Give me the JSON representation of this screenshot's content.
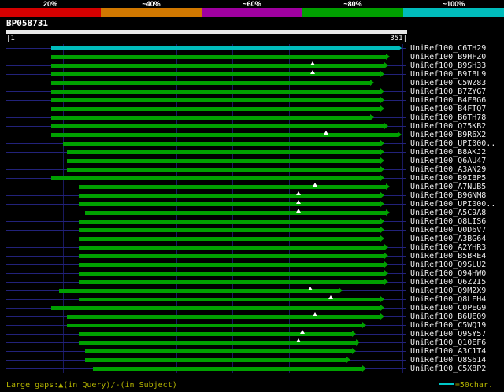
{
  "scale_bar": {
    "segments": [
      {
        "label": "20%",
        "color": "#d40000"
      },
      {
        "label": "~40%",
        "color": "#d07800"
      },
      {
        "label": "~60%",
        "color": "#a000a0"
      },
      {
        "label": "~80%",
        "color": "#00a000"
      },
      {
        "label": "~100%",
        "color": "#00bcbc"
      }
    ]
  },
  "query": {
    "name": "BP058731",
    "start_label": "|1",
    "end_label": "351|"
  },
  "chart_data": {
    "type": "bar",
    "orientation": "horizontal",
    "title": "BP058731",
    "x_range": [
      1,
      351
    ],
    "x_unit": "characters",
    "grid_interval": 50,
    "legend_position": "top",
    "colors": {
      "default": "#00a000",
      "high": "#00bcbc",
      "query_line": "#22227a"
    },
    "hits": [
      {
        "label": "UniRef100_C6TH29",
        "start": 39,
        "end": 346,
        "tier": "high"
      },
      {
        "label": "UniRef100_B9HFZ0",
        "start": 39,
        "end": 336
      },
      {
        "label": "UniRef100_B9SH33",
        "start": 39,
        "end": 334,
        "gaps": [
          271
        ]
      },
      {
        "label": "UniRef100_B9IBL9",
        "start": 39,
        "end": 331,
        "gaps": [
          271
        ]
      },
      {
        "label": "UniRef100_C5WZ83",
        "start": 39,
        "end": 322
      },
      {
        "label": "UniRef100_B7ZYG7",
        "start": 39,
        "end": 331
      },
      {
        "label": "UniRef100_B4F8G6",
        "start": 39,
        "end": 331
      },
      {
        "label": "UniRef100_B4FTQ7",
        "start": 39,
        "end": 331
      },
      {
        "label": "UniRef100_B6TH78",
        "start": 39,
        "end": 322
      },
      {
        "label": "UniRef100_Q75KB2",
        "start": 39,
        "end": 334
      },
      {
        "label": "UniRef100_B9R6X2",
        "start": 39,
        "end": 346,
        "gaps": [
          283
        ]
      },
      {
        "label": "UniRef100_UPI000..",
        "start": 50,
        "end": 331
      },
      {
        "label": "UniRef100_B8AKJ2",
        "start": 53,
        "end": 331
      },
      {
        "label": "UniRef100_Q6AU47",
        "start": 53,
        "end": 331
      },
      {
        "label": "UniRef100_A3AN29",
        "start": 53,
        "end": 331
      },
      {
        "label": "UniRef100_B9IBP5",
        "start": 39,
        "end": 331
      },
      {
        "label": "UniRef100_A7NUB5",
        "start": 64,
        "end": 336,
        "gaps": [
          273
        ]
      },
      {
        "label": "UniRef100_B9GNM8",
        "start": 64,
        "end": 331,
        "gaps": [
          258
        ]
      },
      {
        "label": "UniRef100_UPI000..",
        "start": 64,
        "end": 331,
        "gaps": [
          258
        ]
      },
      {
        "label": "UniRef100_A5C9A8",
        "start": 69,
        "end": 336,
        "gaps": [
          258
        ]
      },
      {
        "label": "UniRef100_Q8LIS6",
        "start": 64,
        "end": 331
      },
      {
        "label": "UniRef100_Q0D6V7",
        "start": 64,
        "end": 331
      },
      {
        "label": "UniRef100_A3BG64",
        "start": 64,
        "end": 331
      },
      {
        "label": "UniRef100_A2YHR3",
        "start": 64,
        "end": 334
      },
      {
        "label": "UniRef100_B5BRE4",
        "start": 64,
        "end": 334
      },
      {
        "label": "UniRef100_Q9SLU2",
        "start": 64,
        "end": 334
      },
      {
        "label": "UniRef100_Q94HW0",
        "start": 64,
        "end": 334
      },
      {
        "label": "UniRef100_Q6Z2I5",
        "start": 64,
        "end": 334
      },
      {
        "label": "UniRef100_Q9M2X9",
        "start": 46,
        "end": 294,
        "gaps": [
          269
        ]
      },
      {
        "label": "UniRef100_Q8LEH4",
        "start": 64,
        "end": 331,
        "gaps": [
          287
        ]
      },
      {
        "label": "UniRef100_C0PEG9",
        "start": 39,
        "end": 331
      },
      {
        "label": "UniRef100_B6UE09",
        "start": 53,
        "end": 331,
        "gaps": [
          273
        ]
      },
      {
        "label": "UniRef100_C5WQ19",
        "start": 53,
        "end": 315
      },
      {
        "label": "UniRef100_Q9SY57",
        "start": 64,
        "end": 306,
        "gaps": [
          262
        ]
      },
      {
        "label": "UniRef100_Q10EF6",
        "start": 64,
        "end": 309,
        "gaps": [
          258
        ]
      },
      {
        "label": "UniRef100_A3C1T4",
        "start": 69,
        "end": 306
      },
      {
        "label": "UniRef100_Q8S614",
        "start": 69,
        "end": 301
      },
      {
        "label": "UniRef100_C5X8P2",
        "start": 76,
        "end": 315
      }
    ]
  },
  "footer": {
    "gaps_legend": "Large gaps:▲(in Query)/-(in Subject)",
    "scale_legend": "=50char.",
    "dash_color": "#00c8c8"
  }
}
